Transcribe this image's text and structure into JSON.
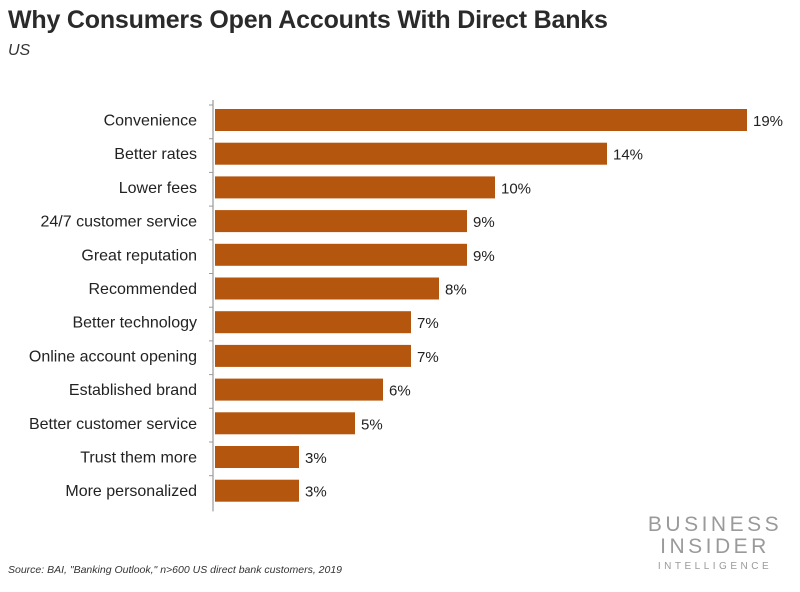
{
  "header": {
    "title": "Why Consumers Open Accounts With Direct Banks",
    "subtitle": "US"
  },
  "footer": {
    "source": "Source: BAI, \"Banking Outlook,\" n>600 US direct bank customers, 2019",
    "logo_line1": "BUSINESS",
    "logo_line2": "INSIDER",
    "logo_line3": "INTELLIGENCE"
  },
  "colors": {
    "bar": "#b5560f",
    "axis": "#999999"
  },
  "chart_data": {
    "type": "bar",
    "orientation": "horizontal",
    "title": "Why Consumers Open Accounts With Direct Banks",
    "subtitle": "US",
    "categories": [
      "Convenience",
      "Better rates",
      "Lower fees",
      "24/7 customer service",
      "Great reputation",
      "Recommended",
      "Better technology",
      "Online account opening",
      "Established brand",
      "Better customer service",
      "Trust them more",
      "More personalized"
    ],
    "values": [
      19,
      14,
      10,
      9,
      9,
      8,
      7,
      7,
      6,
      5,
      3,
      3
    ],
    "value_labels": [
      "19%",
      "14%",
      "10%",
      "9%",
      "9%",
      "8%",
      "7%",
      "7%",
      "6%",
      "5%",
      "3%",
      "3%"
    ],
    "unit": "%",
    "xlim": [
      0,
      19
    ],
    "grid": false,
    "legend": "none"
  }
}
